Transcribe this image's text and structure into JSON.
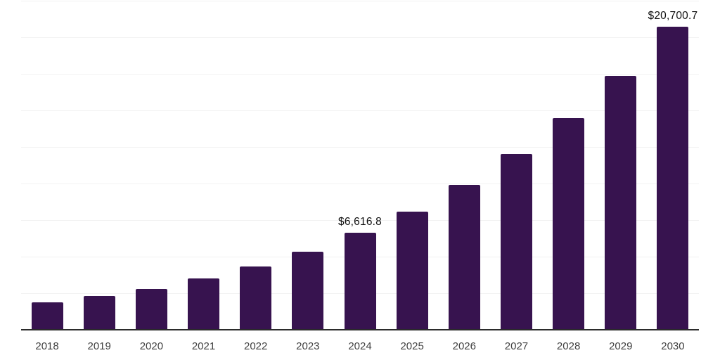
{
  "chart_data": {
    "type": "bar",
    "title": "",
    "xlabel": "",
    "ylabel": "",
    "categories": [
      "2018",
      "2019",
      "2020",
      "2021",
      "2022",
      "2023",
      "2024",
      "2025",
      "2026",
      "2027",
      "2028",
      "2029",
      "2030"
    ],
    "values": [
      1870,
      2330,
      2810,
      3490,
      4340,
      5350,
      6616.8,
      8100,
      9910,
      12000,
      14480,
      17370,
      20700.7
    ],
    "value_labels": [
      "",
      "",
      "",
      "",
      "",
      "",
      "$6,616.8",
      "",
      "",
      "",
      "",
      "",
      "$20,700.7"
    ],
    "ylim": [
      0,
      22500
    ],
    "gridline_step": 2500,
    "grid": "horizontal-only",
    "legend": "none",
    "y_tick_labels_visible": false,
    "bar_color": "#37134f",
    "gridline_color": "#f2f2f2",
    "axis_line_color": "#2b2b2b",
    "x_label_color": "#404040",
    "value_label_color": "#0f0f0f"
  }
}
